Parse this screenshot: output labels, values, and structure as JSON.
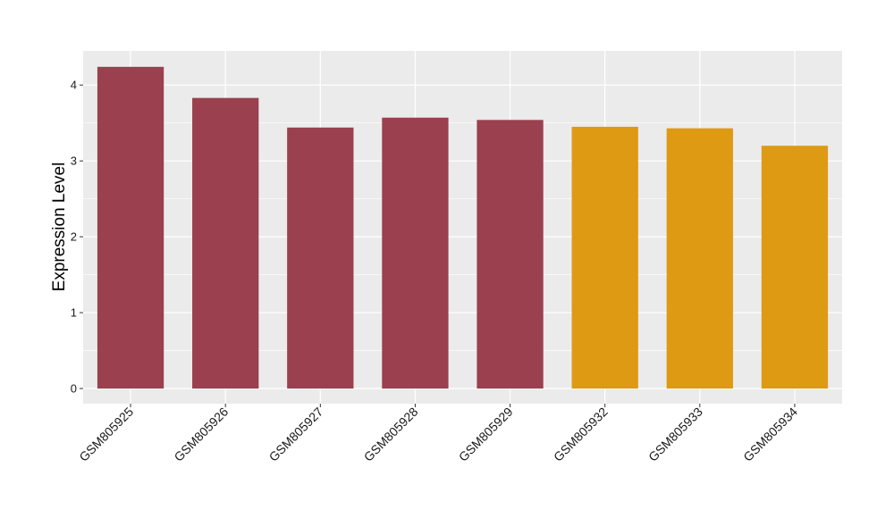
{
  "chart_data": {
    "type": "bar",
    "title": "",
    "xlabel": "",
    "ylabel": "Expression Level",
    "ylim": [
      -0.2,
      4.45
    ],
    "yticks": [
      0,
      1,
      2,
      3,
      4
    ],
    "grid": true,
    "legend": "none",
    "categories": [
      "GSM805925",
      "GSM805926",
      "GSM805927",
      "GSM805928",
      "GSM805929",
      "GSM805932",
      "GSM805933",
      "GSM805934"
    ],
    "values": [
      4.24,
      3.83,
      3.44,
      3.57,
      3.54,
      3.45,
      3.43,
      3.2
    ],
    "bar_colors": [
      "#9A404E",
      "#9A404E",
      "#9A404E",
      "#9A404E",
      "#9A404E",
      "#DE9A13",
      "#DE9A13",
      "#DE9A13"
    ],
    "panel_background": "#EBEBEB",
    "grid_color": "#FFFFFF"
  }
}
